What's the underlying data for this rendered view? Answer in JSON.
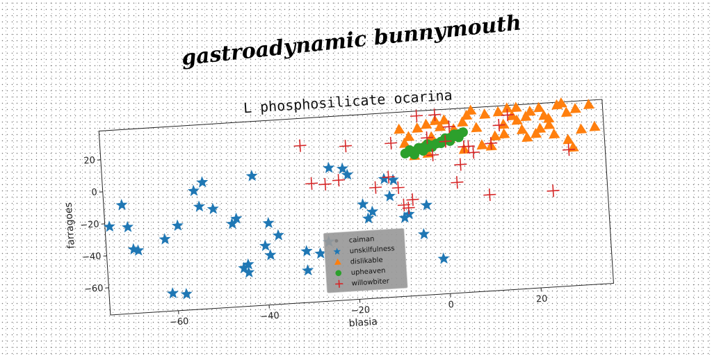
{
  "suptitle": "gastroadynamic bunnymouth",
  "chart_data": {
    "type": "scatter",
    "title": "L phosphosilicate ocarina",
    "xlabel": "blasia",
    "ylabel": "farragoes",
    "xlim": [
      -75,
      36
    ],
    "ylim": [
      -77,
      38
    ],
    "xticks": [
      -60,
      -40,
      -20,
      0,
      20
    ],
    "yticks": [
      -60,
      -40,
      -20,
      0,
      20
    ],
    "grid": false,
    "legend_position": "lower-center",
    "legend_background": "#999999",
    "series": [
      {
        "name": "caiman",
        "marker": "dot",
        "color": "#7f7f7f",
        "points": []
      },
      {
        "name": "unskilfulness",
        "marker": "star",
        "color": "#1f77b4",
        "points": [
          [
            -71,
            -9
          ],
          [
            -74,
            -22
          ],
          [
            -70,
            -23
          ],
          [
            -69,
            -37
          ],
          [
            -68,
            -38
          ],
          [
            -62,
            -32
          ],
          [
            -59,
            -24
          ],
          [
            -55,
            -3
          ],
          [
            -54,
            -13
          ],
          [
            -53,
            2
          ],
          [
            -51,
            -15
          ],
          [
            -47,
            -25
          ],
          [
            -46,
            -22
          ],
          [
            -45,
            -53
          ],
          [
            -44,
            -56
          ],
          [
            -44,
            -51
          ],
          [
            -42,
            4
          ],
          [
            -40,
            -40
          ],
          [
            -39,
            -46
          ],
          [
            -39,
            -26
          ],
          [
            -37,
            -34
          ],
          [
            -31,
            -45
          ],
          [
            -31,
            -57
          ],
          [
            -28,
            -47
          ],
          [
            -26,
            -40
          ],
          [
            -25,
            6
          ],
          [
            -22,
            5
          ],
          [
            -21,
            1
          ],
          [
            -18,
            -18
          ],
          [
            -17,
            -27
          ],
          [
            -16,
            -23
          ],
          [
            -13,
            -3
          ],
          [
            -12,
            -14
          ],
          [
            -11,
            -4
          ],
          [
            -9,
            -28
          ],
          [
            -8,
            -26
          ],
          [
            -5,
            -39
          ],
          [
            -4,
            -21
          ],
          [
            -1,
            -55
          ],
          [
            -61,
            -66
          ],
          [
            -58,
            -67
          ]
        ]
      },
      {
        "name": "dislikable",
        "marker": "triangle",
        "color": "#ff7f0e",
        "points": [
          [
            -8,
            18
          ],
          [
            -7,
            22
          ],
          [
            -6,
            10
          ],
          [
            -5,
            27
          ],
          [
            -4,
            15
          ],
          [
            -3,
            11
          ],
          [
            -3,
            29
          ],
          [
            -2,
            21
          ],
          [
            -1,
            31
          ],
          [
            0,
            27
          ],
          [
            1,
            31
          ],
          [
            2,
            19
          ],
          [
            3,
            25
          ],
          [
            5,
            29
          ],
          [
            6,
            33
          ],
          [
            7,
            36
          ],
          [
            8,
            25
          ],
          [
            9,
            14
          ],
          [
            10,
            33
          ],
          [
            11,
            13
          ],
          [
            12,
            19
          ],
          [
            13,
            34
          ],
          [
            14,
            26
          ],
          [
            14,
            20
          ],
          [
            15,
            36
          ],
          [
            16,
            31
          ],
          [
            17,
            28
          ],
          [
            18,
            22
          ],
          [
            19,
            17
          ],
          [
            20,
            33
          ],
          [
            21,
            19
          ],
          [
            22,
            35
          ],
          [
            22,
            22
          ],
          [
            23,
            30
          ],
          [
            24,
            28
          ],
          [
            25,
            18
          ],
          [
            26,
            36
          ],
          [
            27,
            37
          ],
          [
            28,
            31
          ],
          [
            30,
            33
          ],
          [
            31,
            20
          ],
          [
            33,
            35
          ],
          [
            34,
            21
          ],
          [
            28,
            14
          ],
          [
            29,
            9
          ],
          [
            17,
            36
          ],
          [
            19,
            30
          ],
          [
            24,
            24
          ],
          [
            5,
            12
          ],
          [
            -9,
            27
          ]
        ]
      },
      {
        "name": "upheaven",
        "marker": "dot",
        "color": "#2ca02c",
        "points": [
          [
            -8,
            12
          ],
          [
            -7,
            13
          ],
          [
            -6,
            13
          ],
          [
            -5,
            14
          ],
          [
            -4,
            15
          ],
          [
            -3,
            15
          ],
          [
            -2,
            16
          ],
          [
            -1,
            17
          ],
          [
            0,
            18
          ],
          [
            1,
            19
          ],
          [
            2,
            20
          ],
          [
            3,
            21
          ],
          [
            4,
            22
          ],
          [
            5,
            23
          ],
          [
            -6,
            11
          ],
          [
            -4,
            13
          ],
          [
            -2,
            15
          ],
          [
            0,
            17
          ],
          [
            2,
            18
          ],
          [
            4,
            20
          ],
          [
            -7,
            14
          ],
          [
            -5,
            15
          ],
          [
            -3,
            17
          ],
          [
            1,
            20
          ],
          [
            3,
            22
          ]
        ]
      },
      {
        "name": "willowbiter",
        "marker": "plus",
        "color": "#d62728",
        "points": [
          [
            -31,
            21
          ],
          [
            -21,
            19
          ],
          [
            -29,
            -3
          ],
          [
            -26,
            -4
          ],
          [
            -23,
            -2
          ],
          [
            -15,
            -8
          ],
          [
            -12,
            -2
          ],
          [
            -10,
            -9
          ],
          [
            -11,
            19
          ],
          [
            -9,
            -20
          ],
          [
            -7,
            -17
          ],
          [
            -5,
            35
          ],
          [
            -2,
            10
          ],
          [
            -3,
            21
          ],
          [
            -1,
            35
          ],
          [
            1,
            18
          ],
          [
            2,
            27
          ],
          [
            3,
            -8
          ],
          [
            4,
            3
          ],
          [
            5,
            14
          ],
          [
            6,
            14
          ],
          [
            7,
            10
          ],
          [
            10,
            -17
          ],
          [
            11,
            15
          ],
          [
            13,
            26
          ],
          [
            15,
            32
          ],
          [
            24,
            -17
          ],
          [
            28,
            8
          ],
          [
            -8,
            -22
          ]
        ]
      }
    ]
  }
}
